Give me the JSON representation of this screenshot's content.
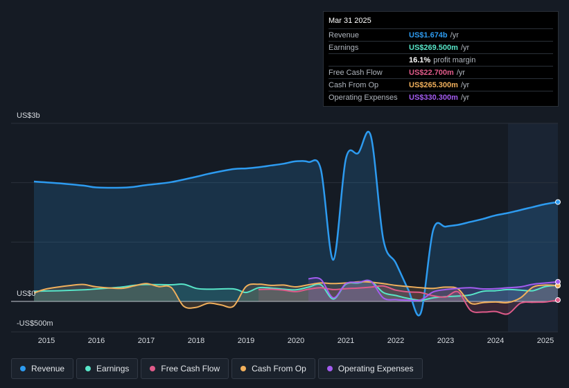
{
  "tooltip": {
    "date": "Mar 31 2025",
    "rows": [
      {
        "label": "Revenue",
        "value": "US$1.674b",
        "unit": "/yr",
        "color": "#2d9bf0"
      },
      {
        "label": "Earnings",
        "value": "US$269.500m",
        "unit": "/yr",
        "color": "#58e6c9"
      },
      {
        "label": "",
        "value": "16.1%",
        "unit": "profit margin",
        "color": "#ffffff"
      },
      {
        "label": "Free Cash Flow",
        "value": "US$22.700m",
        "unit": "/yr",
        "color": "#e05b8a"
      },
      {
        "label": "Cash From Op",
        "value": "US$265.300m",
        "unit": "/yr",
        "color": "#f1b05c"
      },
      {
        "label": "Operating Expenses",
        "value": "US$330.300m",
        "unit": "/yr",
        "color": "#a35cf0"
      }
    ]
  },
  "legend": [
    {
      "label": "Revenue",
      "color": "#2d9bf0"
    },
    {
      "label": "Earnings",
      "color": "#58e6c9"
    },
    {
      "label": "Free Cash Flow",
      "color": "#e05b8a"
    },
    {
      "label": "Cash From Op",
      "color": "#f1b05c"
    },
    {
      "label": "Operating Expenses",
      "color": "#a35cf0"
    }
  ],
  "chart_data": {
    "type": "area",
    "y_unit_labels": {
      "top": "US$3b",
      "zero": "US$0",
      "bottom": "-US$500m"
    },
    "ylim": [
      -500,
      3000
    ],
    "xlim": [
      2014.55,
      2025.25
    ],
    "x_ticks": [
      2015,
      2016,
      2017,
      2018,
      2019,
      2020,
      2021,
      2022,
      2023,
      2024,
      2025
    ],
    "grid": true,
    "legend_position": "bottom",
    "series": [
      {
        "name": "Revenue",
        "color": "#2d9bf0",
        "points": [
          [
            2014.75,
            2020
          ],
          [
            2015.25,
            1990
          ],
          [
            2015.75,
            1950
          ],
          [
            2016.0,
            1920
          ],
          [
            2016.5,
            1915
          ],
          [
            2016.75,
            1930
          ],
          [
            2017.0,
            1960
          ],
          [
            2017.5,
            2010
          ],
          [
            2018.0,
            2100
          ],
          [
            2018.25,
            2150
          ],
          [
            2018.75,
            2230
          ],
          [
            2019.0,
            2240
          ],
          [
            2019.25,
            2260
          ],
          [
            2019.5,
            2290
          ],
          [
            2019.75,
            2320
          ],
          [
            2020.0,
            2360
          ],
          [
            2020.25,
            2350
          ],
          [
            2020.5,
            2220
          ],
          [
            2020.75,
            700
          ],
          [
            2021.0,
            2400
          ],
          [
            2021.25,
            2500
          ],
          [
            2021.5,
            2790
          ],
          [
            2021.75,
            1050
          ],
          [
            2022.0,
            650
          ],
          [
            2022.25,
            200
          ],
          [
            2022.5,
            -200
          ],
          [
            2022.75,
            1200
          ],
          [
            2023.0,
            1260
          ],
          [
            2023.25,
            1290
          ],
          [
            2023.5,
            1340
          ],
          [
            2023.75,
            1390
          ],
          [
            2024.0,
            1450
          ],
          [
            2024.25,
            1490
          ],
          [
            2024.5,
            1540
          ],
          [
            2024.75,
            1590
          ],
          [
            2025.0,
            1640
          ],
          [
            2025.25,
            1674
          ]
        ]
      },
      {
        "name": "Earnings",
        "color": "#58e6c9",
        "points": [
          [
            2014.75,
            170
          ],
          [
            2015.25,
            180
          ],
          [
            2015.75,
            195
          ],
          [
            2016.0,
            210
          ],
          [
            2016.5,
            240
          ],
          [
            2016.75,
            270
          ],
          [
            2017.0,
            285
          ],
          [
            2017.5,
            280
          ],
          [
            2017.75,
            290
          ],
          [
            2018.0,
            220
          ],
          [
            2018.25,
            205
          ],
          [
            2018.75,
            210
          ],
          [
            2019.0,
            150
          ],
          [
            2019.25,
            230
          ],
          [
            2019.5,
            225
          ],
          [
            2019.75,
            205
          ],
          [
            2020.0,
            195
          ],
          [
            2020.25,
            240
          ],
          [
            2020.5,
            280
          ],
          [
            2020.75,
            40
          ],
          [
            2021.0,
            290
          ],
          [
            2021.25,
            310
          ],
          [
            2021.5,
            340
          ],
          [
            2021.75,
            150
          ],
          [
            2022.0,
            100
          ],
          [
            2022.25,
            50
          ],
          [
            2022.5,
            20
          ],
          [
            2022.75,
            60
          ],
          [
            2023.0,
            80
          ],
          [
            2023.25,
            90
          ],
          [
            2023.5,
            110
          ],
          [
            2023.75,
            170
          ],
          [
            2024.0,
            180
          ],
          [
            2024.25,
            200
          ],
          [
            2024.5,
            190
          ],
          [
            2024.75,
            180
          ],
          [
            2025.0,
            250
          ],
          [
            2025.25,
            269.5
          ]
        ]
      },
      {
        "name": "Free Cash Flow",
        "color": "#e05b8a",
        "points": [
          [
            2019.25,
            200
          ],
          [
            2019.5,
            205
          ],
          [
            2019.75,
            190
          ],
          [
            2020.0,
            165
          ],
          [
            2020.25,
            205
          ],
          [
            2020.5,
            230
          ],
          [
            2020.75,
            200
          ],
          [
            2021.0,
            215
          ],
          [
            2021.25,
            225
          ],
          [
            2021.5,
            240
          ],
          [
            2021.75,
            260
          ],
          [
            2022.0,
            190
          ],
          [
            2022.25,
            160
          ],
          [
            2022.5,
            150
          ],
          [
            2022.75,
            95
          ],
          [
            2023.0,
            75
          ],
          [
            2023.25,
            160
          ],
          [
            2023.5,
            -150
          ],
          [
            2023.75,
            -180
          ],
          [
            2024.0,
            -170
          ],
          [
            2024.25,
            -210
          ],
          [
            2024.5,
            -30
          ],
          [
            2024.75,
            -15
          ],
          [
            2025.0,
            -10
          ],
          [
            2025.25,
            22.7
          ]
        ]
      },
      {
        "name": "Cash From Op",
        "color": "#f1b05c",
        "points": [
          [
            2014.75,
            140
          ],
          [
            2015.0,
            210
          ],
          [
            2015.5,
            270
          ],
          [
            2015.75,
            285
          ],
          [
            2016.0,
            245
          ],
          [
            2016.5,
            220
          ],
          [
            2016.75,
            260
          ],
          [
            2017.0,
            300
          ],
          [
            2017.25,
            250
          ],
          [
            2017.5,
            235
          ],
          [
            2017.75,
            -80
          ],
          [
            2018.0,
            -100
          ],
          [
            2018.25,
            -30
          ],
          [
            2018.5,
            -60
          ],
          [
            2018.75,
            -80
          ],
          [
            2019.0,
            250
          ],
          [
            2019.25,
            290
          ],
          [
            2019.5,
            270
          ],
          [
            2019.75,
            275
          ],
          [
            2020.0,
            245
          ],
          [
            2020.25,
            280
          ],
          [
            2020.5,
            310
          ],
          [
            2020.75,
            300
          ],
          [
            2021.0,
            310
          ],
          [
            2021.25,
            330
          ],
          [
            2021.5,
            325
          ],
          [
            2021.75,
            300
          ],
          [
            2022.0,
            270
          ],
          [
            2022.25,
            250
          ],
          [
            2022.5,
            230
          ],
          [
            2022.75,
            220
          ],
          [
            2023.0,
            240
          ],
          [
            2023.25,
            210
          ],
          [
            2023.5,
            -30
          ],
          [
            2023.75,
            -20
          ],
          [
            2024.0,
            -10
          ],
          [
            2024.25,
            -20
          ],
          [
            2024.5,
            60
          ],
          [
            2024.75,
            240
          ],
          [
            2025.0,
            275
          ],
          [
            2025.25,
            265.3
          ]
        ]
      },
      {
        "name": "Operating Expenses",
        "color": "#a35cf0",
        "points": [
          [
            2020.25,
            380
          ],
          [
            2020.5,
            370
          ],
          [
            2020.75,
            60
          ],
          [
            2021.0,
            300
          ],
          [
            2021.25,
            320
          ],
          [
            2021.5,
            340
          ],
          [
            2021.75,
            60
          ],
          [
            2022.0,
            30
          ],
          [
            2022.25,
            20
          ],
          [
            2022.5,
            25
          ],
          [
            2022.75,
            160
          ],
          [
            2023.0,
            200
          ],
          [
            2023.25,
            220
          ],
          [
            2023.5,
            230
          ],
          [
            2023.75,
            210
          ],
          [
            2024.0,
            215
          ],
          [
            2024.25,
            230
          ],
          [
            2024.5,
            245
          ],
          [
            2024.75,
            290
          ],
          [
            2025.0,
            310
          ],
          [
            2025.25,
            330.3
          ]
        ]
      }
    ]
  }
}
